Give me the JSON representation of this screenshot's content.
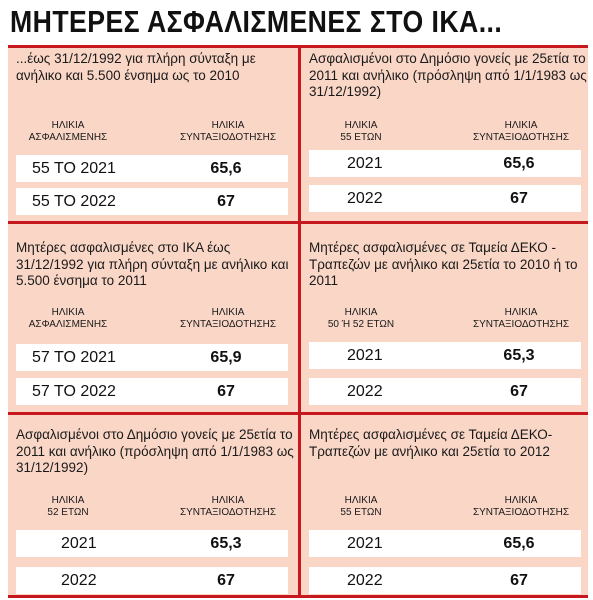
{
  "title": "ΜΗΤΕΡΕΣ ΑΣΦΑΛΙΣΜΕΝΕΣ ΣΤΟ ΙΚΑ...",
  "panels": [
    {
      "desc": "...έως 31/12/1992 για πλήρη σύνταξη με ανήλικο και 5.500 ένσημα ως το 2010",
      "h1": "ΗΛΙΚΙΑ\nΑΣΦΑΛΙΣΜΕΝΗΣ",
      "h2": "ΗΛΙΚΙΑ\nΣΥΝΤΑΞΙΟΔΟΤΗΣΗΣ",
      "rows": [
        {
          "a": "55 ΤΟ 2021",
          "b": "65,6"
        },
        {
          "a": "55 ΤΟ 2022",
          "b": "67"
        }
      ]
    },
    {
      "desc": "Ασφαλισμένοι στο Δημόσιο γονείς με 25ετία το 2011 και ανήλικο (πρόσληψη από 1/1/1983 ως 31/12/1992)",
      "h1": "ΗΛΙΚΙΑ\n55 ΕΤΩΝ",
      "h2": "ΗΛΙΚΙΑ\nΣΥΝΤΑΞΙΟΔΟΤΗΣΗΣ",
      "rows": [
        {
          "a": "2021",
          "b": "65,6"
        },
        {
          "a": "2022",
          "b": "67"
        }
      ]
    },
    {
      "desc": "Μητέρες ασφαλισμένες στο ΙΚΑ έως 31/12/1992 για πλήρη σύνταξη με ανήλικο και 5.500 ένσημα το 2011",
      "h1": "ΗΛΙΚΙΑ\nΑΣΦΑΛΙΣΜΕΝΗΣ",
      "h2": "ΗΛΙΚΙΑ\nΣΥΝΤΑΞΙΟΔΟΤΗΣΗΣ",
      "rows": [
        {
          "a": "57 ΤΟ 2021",
          "b": "65,9"
        },
        {
          "a": "57 ΤΟ 2022",
          "b": "67"
        }
      ]
    },
    {
      "desc": "Μητέρες ασφαλισμένες σε Ταμεία ΔΕΚΟ - Τραπεζών με ανήλικο και 25ετία το 2010 ή το 2011",
      "h1": "ΗΛΙΚΙΑ\n50 Ή 52 ΕΤΩΝ",
      "h2": "ΗΛΙΚΙΑ\nΣΥΝΤΑΞΙΟΔΟΤΗΣΗΣ",
      "rows": [
        {
          "a": "2021",
          "b": "65,3"
        },
        {
          "a": "2022",
          "b": "67"
        }
      ]
    },
    {
      "desc": "Ασφαλισμένοι στο Δημόσιο γονείς με 25ετία το 2011 και ανήλικο (πρόσληψη από 1/1/1983 ως 31/12/1992)",
      "h1": "ΗΛΙΚΙΑ\n52 ΕΤΩΝ",
      "h2": "ΗΛΙΚΙΑ\nΣΥΝΤΑΞΙΟΔΟΤΗΣΗΣ",
      "rows": [
        {
          "a": "2021",
          "b": "65,3"
        },
        {
          "a": "2022",
          "b": "67"
        }
      ]
    },
    {
      "desc": "Μητέρες ασφαλισμένες σε Ταμεία ΔΕΚΟ-Τραπεζών με ανήλικο και 25ετία το 2012",
      "h1": "ΗΛΙΚΙΑ\n55 ΕΤΩΝ",
      "h2": "ΗΛΙΚΙΑ\nΣΥΝΤΑΞΙΟΔΟΤΗΣΗΣ",
      "rows": [
        {
          "a": "2021",
          "b": "65,6"
        },
        {
          "a": "2022",
          "b": "67"
        }
      ]
    }
  ],
  "colors": {
    "accent": "#c6181d",
    "panel_bg": "#f9d6c6",
    "row_bg": "#ffffff"
  }
}
